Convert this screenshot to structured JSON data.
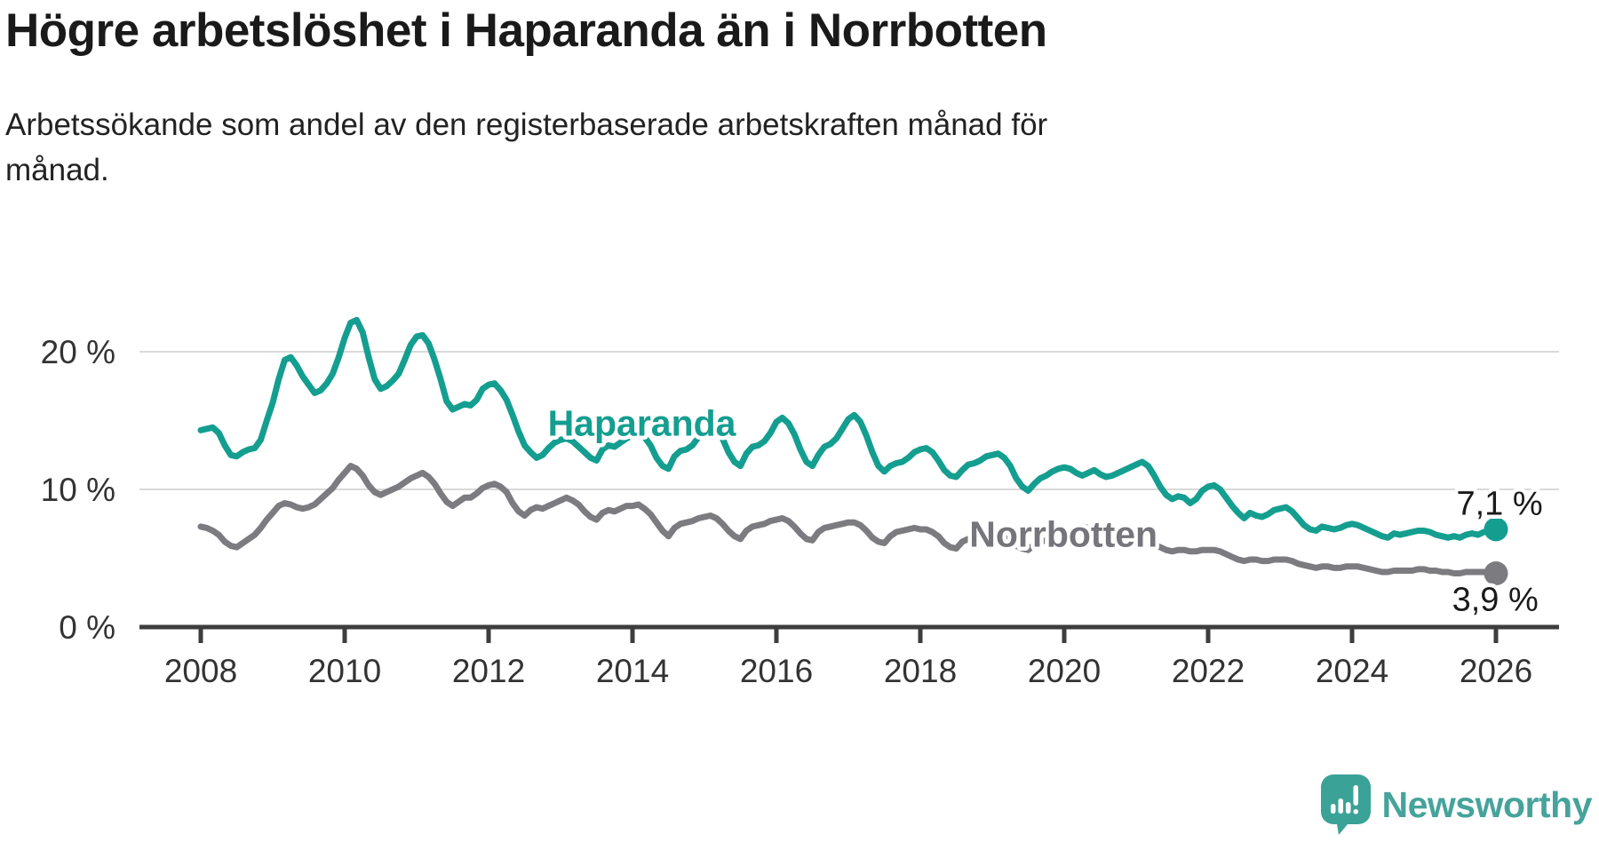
{
  "header": {
    "title": "Högre arbetslöshet i Haparanda än i Norrbotten",
    "subtitle_lines": [
      "Arbetssökande som andel av den registerbaserade arbetskraften månad för",
      "månad."
    ]
  },
  "chart_data": {
    "type": "line",
    "title": "",
    "xlabel": "",
    "ylabel": "",
    "unit": "%",
    "x_start": "2008-01",
    "x_end": "2026-01",
    "x_frequency": "monthly",
    "xlim": [
      2007.1,
      2026.9
    ],
    "ylim": [
      0,
      23.5
    ],
    "grid": "horizontal",
    "y_ticks": [
      {
        "value": 0,
        "label": "0 %"
      },
      {
        "value": 10,
        "label": "10 %"
      },
      {
        "value": 20,
        "label": "20 %"
      }
    ],
    "x_ticks": [
      {
        "value": 2008,
        "label": "2008"
      },
      {
        "value": 2010,
        "label": "2010"
      },
      {
        "value": 2012,
        "label": "2012"
      },
      {
        "value": 2014,
        "label": "2014"
      },
      {
        "value": 2016,
        "label": "2016"
      },
      {
        "value": 2018,
        "label": "2018"
      },
      {
        "value": 2020,
        "label": "2020"
      },
      {
        "value": 2022,
        "label": "2022"
      },
      {
        "value": 2024,
        "label": "2024"
      },
      {
        "value": 2026,
        "label": "2026"
      }
    ],
    "series": [
      {
        "name": "Norrbotten",
        "color": "#7c7b80",
        "end_label": "3,9 %",
        "end_value": 3.9,
        "values": [
          7.3,
          7.2,
          7.0,
          6.7,
          6.2,
          5.9,
          5.8,
          6.1,
          6.4,
          6.7,
          7.2,
          7.8,
          8.3,
          8.8,
          9.0,
          8.9,
          8.7,
          8.6,
          8.7,
          8.9,
          9.3,
          9.7,
          10.1,
          10.7,
          11.2,
          11.7,
          11.5,
          11.0,
          10.3,
          9.8,
          9.6,
          9.8,
          10.0,
          10.2,
          10.5,
          10.8,
          11.0,
          11.2,
          10.9,
          10.4,
          9.7,
          9.1,
          8.8,
          9.1,
          9.4,
          9.4,
          9.7,
          10.1,
          10.3,
          10.4,
          10.2,
          9.8,
          9.0,
          8.4,
          8.1,
          8.5,
          8.7,
          8.6,
          8.8,
          9.0,
          9.2,
          9.4,
          9.2,
          8.9,
          8.4,
          8.0,
          7.8,
          8.3,
          8.5,
          8.4,
          8.6,
          8.8,
          8.8,
          8.9,
          8.6,
          8.2,
          7.6,
          7.0,
          6.6,
          7.2,
          7.5,
          7.6,
          7.7,
          7.9,
          8.0,
          8.1,
          7.9,
          7.5,
          7.0,
          6.6,
          6.4,
          7.0,
          7.3,
          7.4,
          7.5,
          7.7,
          7.8,
          7.9,
          7.7,
          7.3,
          6.8,
          6.4,
          6.3,
          6.9,
          7.2,
          7.3,
          7.4,
          7.5,
          7.6,
          7.6,
          7.4,
          7.0,
          6.5,
          6.2,
          6.1,
          6.6,
          6.9,
          7.0,
          7.1,
          7.2,
          7.1,
          7.1,
          6.9,
          6.6,
          6.1,
          5.8,
          5.7,
          6.2,
          6.4,
          6.5,
          6.6,
          6.7,
          6.7,
          6.7,
          6.5,
          6.2,
          5.9,
          5.7,
          5.6,
          6.0,
          6.2,
          6.3,
          6.4,
          6.6,
          6.7,
          6.7,
          6.9,
          7.3,
          7.2,
          7.0,
          6.9,
          6.9,
          6.8,
          6.7,
          6.6,
          6.6,
          6.5,
          6.4,
          6.2,
          6.0,
          5.8,
          5.6,
          5.5,
          5.6,
          5.6,
          5.5,
          5.5,
          5.6,
          5.6,
          5.6,
          5.5,
          5.3,
          5.1,
          4.9,
          4.8,
          4.9,
          4.9,
          4.8,
          4.8,
          4.9,
          4.9,
          4.9,
          4.8,
          4.6,
          4.5,
          4.4,
          4.3,
          4.4,
          4.4,
          4.3,
          4.3,
          4.4,
          4.4,
          4.4,
          4.3,
          4.2,
          4.1,
          4.0,
          4.0,
          4.1,
          4.1,
          4.1,
          4.1,
          4.2,
          4.2,
          4.1,
          4.1,
          4.0,
          4.0,
          3.9,
          3.9,
          4.0,
          4.0,
          4.0,
          4.0,
          4.0,
          3.9
        ]
      },
      {
        "name": "Haparanda",
        "color": "#149e90",
        "end_label": "7,1 %",
        "end_value": 7.1,
        "values": [
          14.3,
          14.4,
          14.5,
          14.1,
          13.2,
          12.5,
          12.4,
          12.7,
          12.9,
          13.0,
          13.6,
          15.0,
          16.3,
          18.0,
          19.4,
          19.6,
          19.0,
          18.2,
          17.6,
          17.0,
          17.2,
          17.7,
          18.4,
          19.6,
          21.0,
          22.1,
          22.3,
          21.4,
          19.6,
          18.0,
          17.3,
          17.5,
          17.9,
          18.4,
          19.4,
          20.5,
          21.1,
          21.2,
          20.6,
          19.4,
          18.0,
          16.4,
          15.8,
          16.0,
          16.2,
          16.1,
          16.5,
          17.3,
          17.6,
          17.7,
          17.2,
          16.5,
          15.4,
          14.2,
          13.2,
          12.7,
          12.3,
          12.5,
          13.0,
          13.4,
          13.6,
          13.7,
          13.5,
          13.1,
          12.7,
          12.3,
          12.1,
          12.9,
          13.2,
          13.1,
          13.4,
          13.7,
          13.9,
          14.1,
          13.8,
          13.2,
          12.3,
          11.7,
          11.5,
          12.4,
          12.8,
          12.9,
          13.2,
          13.8,
          14.5,
          14.8,
          14.4,
          13.7,
          12.7,
          12.0,
          11.7,
          12.6,
          13.1,
          13.2,
          13.5,
          14.1,
          14.9,
          15.2,
          14.8,
          14.0,
          12.9,
          12.0,
          11.7,
          12.5,
          13.1,
          13.3,
          13.7,
          14.4,
          15.1,
          15.4,
          14.9,
          13.9,
          12.7,
          11.7,
          11.3,
          11.7,
          11.9,
          12.0,
          12.3,
          12.7,
          12.9,
          13.0,
          12.7,
          12.1,
          11.4,
          11.0,
          10.9,
          11.4,
          11.8,
          11.9,
          12.1,
          12.4,
          12.5,
          12.6,
          12.3,
          11.7,
          10.8,
          10.2,
          9.9,
          10.4,
          10.8,
          11.0,
          11.3,
          11.5,
          11.6,
          11.5,
          11.2,
          11.0,
          11.2,
          11.4,
          11.1,
          10.9,
          11.0,
          11.2,
          11.4,
          11.6,
          11.8,
          12.0,
          11.7,
          11.0,
          10.2,
          9.6,
          9.3,
          9.5,
          9.4,
          9.0,
          9.3,
          9.9,
          10.2,
          10.3,
          10.0,
          9.4,
          8.8,
          8.3,
          7.9,
          8.3,
          8.1,
          8.0,
          8.2,
          8.5,
          8.6,
          8.7,
          8.4,
          7.9,
          7.4,
          7.1,
          7.0,
          7.3,
          7.2,
          7.1,
          7.2,
          7.4,
          7.5,
          7.4,
          7.2,
          7.0,
          6.8,
          6.6,
          6.5,
          6.8,
          6.7,
          6.8,
          6.9,
          7.0,
          7.0,
          6.9,
          6.7,
          6.6,
          6.5,
          6.6,
          6.5,
          6.7,
          6.8,
          6.7,
          6.9,
          7.0,
          7.1
        ]
      }
    ],
    "annotations": [
      {
        "role": "series-label",
        "text": "Haparanda",
        "year": 2014.13,
        "pct": 14.8,
        "color": "#149e90"
      },
      {
        "role": "series-label",
        "text": "Norrbotten",
        "year": 2019.99,
        "pct": 6.75,
        "color": "#76757b"
      },
      {
        "role": "value-label",
        "text": "7,1 %",
        "year": 2026.05,
        "pct": 9.05,
        "color": "#1a1a1a"
      },
      {
        "role": "value-label",
        "text": "3,9 %",
        "year": 2025.99,
        "pct": 2.1,
        "color": "#1a1a1a"
      }
    ],
    "legend_position": "inline-labels"
  },
  "footer": {
    "brand": "Newsworthy",
    "brand_color": "#46a39b",
    "logo_icon": "newsworthy-speech-bubble-barchart-icon"
  }
}
